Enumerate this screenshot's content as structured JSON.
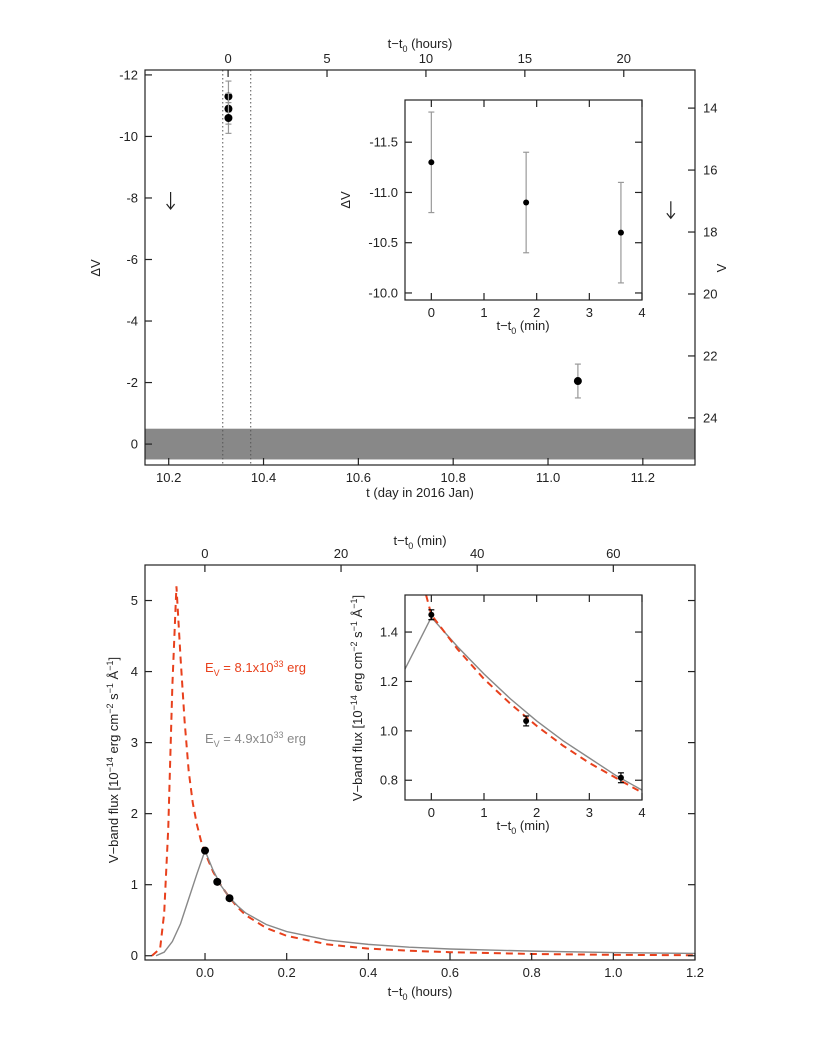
{
  "chart_data": [
    {
      "type": "scatter",
      "xlabel": [
        {
          "text": "t (day in 2016 Jan)"
        }
      ],
      "x2label": [
        {
          "text": "t−t"
        },
        {
          "text": "0",
          "shift": "sub"
        },
        {
          "text": " (hours)"
        }
      ],
      "ylabel": [
        {
          "text": "ΔV"
        }
      ],
      "y2label": [
        {
          "text": "V"
        }
      ],
      "xlim": [
        10.15,
        11.31
      ],
      "xticks": [
        10.2,
        10.4,
        10.6,
        10.8,
        {
          "value": 11,
          "label": "11.0"
        },
        11.2
      ],
      "x2lim": [
        -4.2,
        23.6
      ],
      "x2ticks": [
        0,
        5,
        10,
        15,
        20
      ],
      "ylim": [
        0.68,
        -12.16
      ],
      "yticks": [
        -12,
        -10,
        -8,
        -6,
        -4,
        -2,
        0
      ],
      "y2lim": [
        25.52,
        12.77
      ],
      "y2ticks": [
        14,
        16,
        18,
        20,
        22,
        24
      ],
      "band": [
        -0.5,
        0.5
      ],
      "band_color": "#888888",
      "vlines": [
        10.314,
        10.373
      ],
      "series": [
        {
          "style": "points",
          "color": "#000000",
          "error_color": "#999999",
          "x": [
            10.326,
            10.326,
            10.326,
            11.063
          ],
          "values": [
            -11.3,
            -10.9,
            -10.6,
            -2.05
          ],
          "errors": [
            0.5,
            0.5,
            0.5,
            0.55
          ]
        }
      ],
      "upper_limits": {
        "x": [
          10.204,
          11.259
        ],
        "values": [
          -7.9,
          -7.6
        ]
      }
    },
    {
      "type": "scatter",
      "xlabel": [
        {
          "text": "t−t"
        },
        {
          "text": "0",
          "shift": "sub"
        },
        {
          "text": " (min)"
        }
      ],
      "ylabel": [
        {
          "text": "ΔV"
        }
      ],
      "xlim": [
        -0.5,
        4
      ],
      "xticks": [
        0,
        1,
        2,
        3,
        4
      ],
      "ylim": [
        -9.93,
        -11.92
      ],
      "yticks": [
        -11.5,
        {
          "value": -11,
          "label": "-11.0"
        },
        -10.5,
        {
          "value": -10,
          "label": "-10.0"
        }
      ],
      "series": [
        {
          "style": "points",
          "color": "#000000",
          "error_color": "#999999",
          "x": [
            0,
            1.8,
            3.6
          ],
          "values": [
            -11.3,
            -10.9,
            -10.6
          ],
          "errors": [
            0.5,
            0.5,
            0.5
          ]
        }
      ]
    },
    {
      "type": "line",
      "xlabel": [
        {
          "text": "t−t"
        },
        {
          "text": "0",
          "shift": "sub"
        },
        {
          "text": " (hours)"
        }
      ],
      "x2label": [
        {
          "text": "t−t"
        },
        {
          "text": "0",
          "shift": "sub"
        },
        {
          "text": " (min)"
        }
      ],
      "ylabel": [
        {
          "text": "V−band flux [10"
        },
        {
          "text": "−14",
          "shift": "sup"
        },
        {
          "text": " erg cm"
        },
        {
          "text": "−2",
          "shift": "sup"
        },
        {
          "text": " s"
        },
        {
          "text": "−1",
          "shift": "sup"
        },
        {
          "text": " Å"
        },
        {
          "text": "−1",
          "shift": "sup"
        },
        {
          "text": "]"
        }
      ],
      "xlim": [
        -0.147,
        1.2
      ],
      "xticks": [
        {
          "value": 0,
          "label": "0.0"
        },
        0.2,
        0.4,
        0.6,
        0.8,
        {
          "value": 1,
          "label": "1.0"
        },
        1.2
      ],
      "x2lim": [
        -8.8,
        72
      ],
      "x2ticks": [
        0,
        20,
        40,
        60
      ],
      "ylim": [
        -0.06,
        5.5
      ],
      "yticks": [
        0,
        1,
        2,
        3,
        4,
        5
      ],
      "series": [
        {
          "style": "dashed",
          "color": "#e8401c",
          "x": [
            -0.13,
            -0.11,
            -0.1,
            -0.09,
            -0.08,
            -0.07,
            -0.06,
            -0.05,
            -0.04,
            -0.03,
            -0.02,
            -0.01,
            0,
            0.02,
            0.04,
            0.06,
            0.08,
            0.1,
            0.15,
            0.2,
            0.3,
            0.4,
            0.5,
            0.6,
            0.8,
            1.0,
            1.2
          ],
          "values": [
            0,
            0.1,
            0.6,
            1.8,
            3.8,
            5.2,
            4.2,
            3.3,
            2.6,
            2.15,
            1.85,
            1.62,
            1.45,
            1.18,
            0.98,
            0.82,
            0.68,
            0.57,
            0.39,
            0.28,
            0.16,
            0.1,
            0.07,
            0.05,
            0.025,
            0.013,
            0.007
          ]
        },
        {
          "style": "line",
          "color": "#888888",
          "x": [
            -0.12,
            -0.1,
            -0.08,
            -0.06,
            -0.04,
            -0.02,
            0,
            0.02,
            0.04,
            0.06,
            0.08,
            0.1,
            0.15,
            0.2,
            0.3,
            0.4,
            0.5,
            0.6,
            0.8,
            1.0,
            1.2
          ],
          "values": [
            0,
            0.05,
            0.2,
            0.45,
            0.8,
            1.15,
            1.48,
            1.2,
            0.98,
            0.82,
            0.7,
            0.6,
            0.44,
            0.34,
            0.22,
            0.16,
            0.12,
            0.095,
            0.065,
            0.045,
            0.032
          ]
        },
        {
          "style": "points",
          "color": "#000000",
          "error_color": "#000000",
          "x": [
            0,
            0.03,
            0.06
          ],
          "values": [
            1.48,
            1.04,
            0.81
          ],
          "errors": [
            0.03,
            0.03,
            0.03
          ]
        }
      ],
      "annotations": [
        {
          "color": "#e8401c",
          "parts": [
            {
              "text": "E"
            },
            {
              "text": "V",
              "shift": "sub"
            },
            {
              "text": " = 8.1x10"
            },
            {
              "text": "33",
              "shift": "sup"
            },
            {
              "text": " erg"
            }
          ]
        },
        {
          "color": "#888888",
          "parts": [
            {
              "text": "E"
            },
            {
              "text": "V",
              "shift": "sub"
            },
            {
              "text": " = 4.9x10"
            },
            {
              "text": "33",
              "shift": "sup"
            },
            {
              "text": " erg"
            }
          ]
        }
      ]
    },
    {
      "type": "line",
      "xlabel": [
        {
          "text": "t−t"
        },
        {
          "text": "0",
          "shift": "sub"
        },
        {
          "text": " (min)"
        }
      ],
      "ylabel": [
        {
          "text": "V−band flux [10"
        },
        {
          "text": "−14",
          "shift": "sup"
        },
        {
          "text": " erg cm"
        },
        {
          "text": "−2",
          "shift": "sup"
        },
        {
          "text": " s"
        },
        {
          "text": "−1",
          "shift": "sup"
        },
        {
          "text": " Å"
        },
        {
          "text": "−1",
          "shift": "sup"
        },
        {
          "text": "]"
        }
      ],
      "xlim": [
        -0.5,
        4
      ],
      "xticks": [
        0,
        1,
        2,
        3,
        4
      ],
      "ylim": [
        0.72,
        1.55
      ],
      "yticks": [
        0.8,
        {
          "value": 1,
          "label": "1.0"
        },
        1.2,
        1.4
      ],
      "series": [
        {
          "style": "line",
          "color": "#888888",
          "x": [
            -0.5,
            0,
            0.5,
            1,
            1.5,
            2,
            2.5,
            3,
            3.5,
            4
          ],
          "values": [
            1.25,
            1.46,
            1.34,
            1.23,
            1.13,
            1.04,
            0.96,
            0.89,
            0.82,
            0.76
          ]
        },
        {
          "style": "dashed",
          "color": "#e8401c",
          "x": [
            -0.1,
            0,
            0.5,
            1,
            1.5,
            2,
            2.5,
            3,
            3.5,
            4
          ],
          "values": [
            1.55,
            1.47,
            1.33,
            1.21,
            1.11,
            1.02,
            0.94,
            0.87,
            0.81,
            0.75
          ]
        },
        {
          "style": "points",
          "color": "#000000",
          "error_color": "#000000",
          "x": [
            0,
            1.8,
            3.6
          ],
          "values": [
            1.47,
            1.04,
            0.81
          ],
          "errors": [
            0.02,
            0.02,
            0.02
          ]
        }
      ]
    }
  ]
}
